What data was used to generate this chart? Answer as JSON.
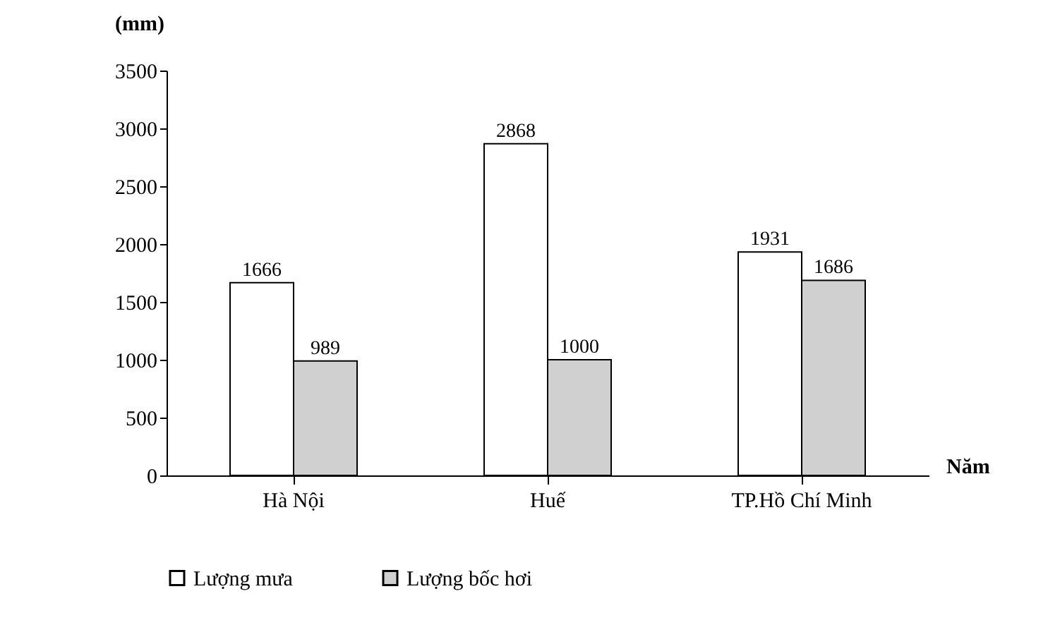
{
  "chart_data": {
    "type": "bar",
    "xlabel": "Năm",
    "ylabel": "(mm)",
    "categories": [
      "Hà Nội",
      "Huế",
      "TP.Hồ Chí Minh"
    ],
    "series": [
      {
        "name": "Lượng mưa",
        "color": "#ffffff",
        "values": [
          1666,
          2868,
          1931
        ]
      },
      {
        "name": "Lượng bốc hơi",
        "color": "#d0d0d0",
        "values": [
          989,
          1000,
          1686
        ]
      }
    ],
    "ylim": [
      0,
      3500
    ],
    "yticks": [
      0,
      500,
      1000,
      1500,
      2000,
      2500,
      3000,
      3500
    ],
    "data_labels": true,
    "legend": "bottom",
    "grid": false
  }
}
